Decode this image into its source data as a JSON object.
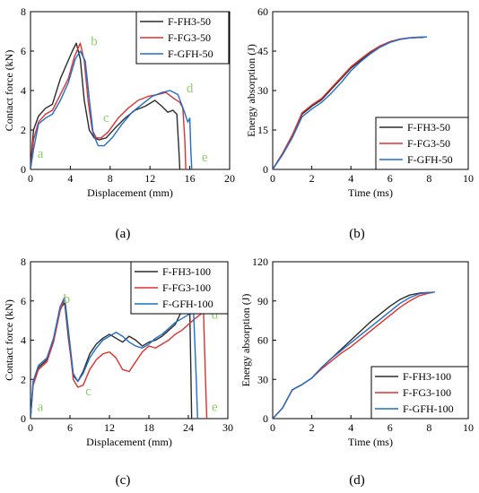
{
  "colors": {
    "FH3": "#2b2b2b",
    "FG3": "#e23030",
    "GFH": "#1f6fc9",
    "annotation": "#8fcf6a"
  },
  "chart_data": [
    {
      "id": "a",
      "type": "line",
      "caption": "(a)",
      "xlabel": "Displacement (mm)",
      "ylabel": "Contact force (kN)",
      "xlim": [
        0,
        20
      ],
      "ylim": [
        0,
        8
      ],
      "xticks": [
        0,
        4,
        8,
        12,
        16,
        20
      ],
      "yticks": [
        0,
        2,
        4,
        6,
        8
      ],
      "grid": false,
      "legend_position": "top-right",
      "annotations": [
        {
          "label": "a",
          "x": 1.0,
          "y": 0.6
        },
        {
          "label": "b",
          "x": 6.4,
          "y": 6.3
        },
        {
          "label": "c",
          "x": 7.6,
          "y": 2.4
        },
        {
          "label": "d",
          "x": 16.0,
          "y": 3.9
        },
        {
          "label": "e",
          "x": 17.5,
          "y": 0.4
        }
      ],
      "series": [
        {
          "name": "F-FH3-50",
          "color_key": "FH3",
          "x": [
            0,
            0.3,
            0.8,
            1.5,
            2.2,
            3.0,
            3.6,
            4.2,
            4.6,
            5.0,
            5.4,
            5.9,
            6.4,
            6.9,
            7.6,
            8.5,
            9.5,
            10.5,
            11.5,
            12.5,
            13.2,
            13.8,
            14.3,
            14.7,
            14.9,
            15.0
          ],
          "y": [
            0,
            2.0,
            2.7,
            3.1,
            3.3,
            4.6,
            5.3,
            6.0,
            6.4,
            5.6,
            3.5,
            2.0,
            1.6,
            1.5,
            1.6,
            2.1,
            2.6,
            3.0,
            3.2,
            3.5,
            3.2,
            2.9,
            3.0,
            2.8,
            1.0,
            0
          ]
        },
        {
          "name": "F-FG3-50",
          "color_key": "FG3",
          "x": [
            0,
            0.3,
            0.8,
            1.5,
            2.2,
            3.0,
            3.8,
            4.4,
            5.0,
            5.4,
            5.8,
            6.2,
            6.6,
            7.1,
            7.8,
            8.8,
            9.8,
            10.8,
            11.8,
            12.8,
            13.6,
            14.4,
            15.0,
            15.3,
            15.5,
            15.6
          ],
          "y": [
            0,
            1.5,
            2.4,
            2.8,
            3.0,
            3.8,
            4.6,
            5.7,
            6.4,
            5.5,
            3.4,
            2.0,
            1.6,
            1.6,
            1.9,
            2.6,
            3.1,
            3.5,
            3.7,
            3.8,
            3.9,
            3.6,
            3.4,
            3.1,
            1.5,
            0
          ]
        },
        {
          "name": "F-GFH-50",
          "color_key": "GFH",
          "x": [
            0,
            0.3,
            0.8,
            1.5,
            2.2,
            3.0,
            3.8,
            4.5,
            5.0,
            5.5,
            5.9,
            6.3,
            6.8,
            7.4,
            8.2,
            9.2,
            10.2,
            11.2,
            12.2,
            13.2,
            14.0,
            14.8,
            15.4,
            15.8,
            16.0,
            16.1,
            16.2
          ],
          "y": [
            0,
            1.0,
            2.3,
            2.6,
            2.8,
            3.5,
            4.4,
            5.6,
            6.0,
            5.5,
            3.6,
            1.8,
            1.2,
            1.2,
            1.6,
            2.3,
            2.9,
            3.3,
            3.7,
            3.9,
            4.0,
            3.8,
            3.0,
            2.4,
            2.6,
            1.0,
            0
          ]
        }
      ]
    },
    {
      "id": "b",
      "type": "line",
      "caption": "(b)",
      "xlabel": "Time (ms)",
      "ylabel": "Energy absorption (J)",
      "xlim": [
        0,
        10
      ],
      "ylim": [
        0,
        60
      ],
      "xticks": [
        0,
        2,
        4,
        6,
        8,
        10
      ],
      "yticks": [
        0,
        15,
        30,
        45,
        60
      ],
      "grid": false,
      "legend_position": "bottom-right",
      "series": [
        {
          "name": "F-FH3-50",
          "color_key": "FH3",
          "x": [
            0,
            0.5,
            1.0,
            1.5,
            2.0,
            2.5,
            3.0,
            3.5,
            4.0,
            4.5,
            5.0,
            5.5,
            6.0,
            6.5,
            7.0,
            7.5,
            7.7
          ],
          "y": [
            0,
            6,
            13,
            21,
            24,
            26.5,
            30.5,
            34.5,
            38.5,
            41.5,
            44.5,
            46.8,
            48.5,
            49.5,
            50.0,
            50.2,
            50.2
          ]
        },
        {
          "name": "F-FG3-50",
          "color_key": "FG3",
          "x": [
            0,
            0.5,
            1.0,
            1.5,
            2.0,
            2.5,
            3.0,
            3.5,
            4.0,
            4.5,
            5.0,
            5.5,
            6.0,
            6.5,
            7.0,
            7.5,
            7.8
          ],
          "y": [
            0,
            6,
            13,
            21.5,
            24.5,
            27,
            31,
            35,
            39,
            42,
            44.8,
            47,
            48.6,
            49.6,
            50.1,
            50.3,
            50.3
          ]
        },
        {
          "name": "F-GFH-50",
          "color_key": "GFH",
          "x": [
            0,
            0.5,
            1.0,
            1.5,
            2.0,
            2.5,
            3.0,
            3.5,
            4.0,
            4.5,
            5.0,
            5.5,
            6.0,
            6.5,
            7.0,
            7.5,
            7.9
          ],
          "y": [
            0,
            5.5,
            12,
            20,
            23,
            25.5,
            29,
            33,
            37.5,
            41,
            44,
            46.5,
            48.3,
            49.4,
            50.0,
            50.3,
            50.4
          ]
        }
      ]
    },
    {
      "id": "c",
      "type": "line",
      "caption": "(c)",
      "xlabel": "Displacement (mm)",
      "ylabel": "Contact force (kN)",
      "xlim": [
        0,
        30
      ],
      "ylim": [
        0,
        8
      ],
      "xticks": [
        0,
        6,
        12,
        18,
        24,
        30
      ],
      "yticks": [
        0,
        2,
        4,
        6,
        8
      ],
      "grid": false,
      "legend_position": "top-right",
      "annotations": [
        {
          "label": "a",
          "x": 1.5,
          "y": 0.4
        },
        {
          "label": "b",
          "x": 5.5,
          "y": 5.9
        },
        {
          "label": "c",
          "x": 8.8,
          "y": 1.2
        },
        {
          "label": "d",
          "x": 28.0,
          "y": 5.1
        },
        {
          "label": "e",
          "x": 28.0,
          "y": 0.4
        }
      ],
      "series": [
        {
          "name": "F-FH3-100",
          "color_key": "FH3",
          "x": [
            0,
            0.4,
            1.2,
            2.5,
            3.5,
            4.5,
            5.2,
            5.8,
            6.5,
            7.2,
            8.0,
            9.0,
            10.0,
            11.0,
            12.0,
            13.0,
            14.0,
            15.0,
            16.0,
            17.0,
            18.0,
            19.0,
            20.0,
            21.0,
            22.0,
            23.0,
            23.8,
            24.2,
            24.4,
            24.5
          ],
          "y": [
            0,
            1.8,
            2.6,
            3.0,
            4.0,
            5.6,
            5.9,
            4.0,
            2.2,
            1.9,
            2.4,
            3.3,
            3.8,
            4.1,
            4.3,
            4.1,
            3.9,
            4.2,
            4.0,
            3.7,
            3.9,
            4.0,
            4.2,
            4.5,
            4.8,
            5.5,
            5.9,
            5.8,
            2.0,
            0
          ]
        },
        {
          "name": "F-FG3-100",
          "color_key": "FG3",
          "x": [
            0,
            0.4,
            1.2,
            2.5,
            3.5,
            4.5,
            5.2,
            5.8,
            6.5,
            7.2,
            8.0,
            9.0,
            10.0,
            11.0,
            12.0,
            13.0,
            14.0,
            15.0,
            16.0,
            17.0,
            18.0,
            19.0,
            20.0,
            21.0,
            22.0,
            23.0,
            24.0,
            25.0,
            25.8,
            26.3,
            26.6,
            26.8
          ],
          "y": [
            0,
            1.7,
            2.5,
            2.9,
            3.9,
            5.5,
            6.1,
            4.2,
            2.0,
            1.6,
            1.7,
            2.5,
            3.0,
            3.3,
            3.4,
            3.1,
            2.5,
            2.4,
            2.9,
            3.4,
            3.7,
            3.6,
            3.8,
            4.0,
            4.3,
            4.5,
            4.8,
            5.1,
            5.3,
            5.5,
            2.0,
            0
          ]
        },
        {
          "name": "F-GFH-100",
          "color_key": "GFH",
          "x": [
            0,
            0.4,
            1.2,
            2.5,
            3.5,
            4.5,
            5.2,
            5.8,
            6.5,
            7.2,
            8.0,
            9.0,
            10.0,
            11.0,
            12.0,
            13.0,
            14.0,
            15.0,
            16.0,
            17.0,
            18.0,
            19.0,
            20.0,
            21.0,
            22.0,
            23.0,
            24.0,
            24.8,
            25.2,
            25.4
          ],
          "y": [
            0,
            1.9,
            2.7,
            3.1,
            4.1,
            5.7,
            6.2,
            4.4,
            2.3,
            1.9,
            2.3,
            3.1,
            3.6,
            4.0,
            4.2,
            4.4,
            4.2,
            3.9,
            3.7,
            3.6,
            3.8,
            4.1,
            4.3,
            4.6,
            4.9,
            5.1,
            5.3,
            5.4,
            2.0,
            0
          ]
        }
      ]
    },
    {
      "id": "d",
      "type": "line",
      "caption": "(d)",
      "xlabel": "Time (ms)",
      "ylabel": "Energy absorption (J)",
      "xlim": [
        0,
        10
      ],
      "ylim": [
        0,
        120
      ],
      "xticks": [
        0,
        2,
        4,
        6,
        8,
        10
      ],
      "yticks": [
        0,
        30,
        60,
        90,
        120
      ],
      "grid": false,
      "legend_position": "bottom-right",
      "series": [
        {
          "name": "F-FH3-100",
          "color_key": "FH3",
          "x": [
            0,
            0.5,
            1.0,
            1.5,
            2.0,
            2.5,
            3.0,
            3.5,
            4.0,
            4.5,
            5.0,
            5.5,
            6.0,
            6.5,
            7.0,
            7.5,
            8.0
          ],
          "y": [
            0,
            8,
            22,
            26,
            31,
            39,
            46,
            53,
            60,
            67,
            74,
            80,
            86,
            91,
            94.5,
            96,
            96.5
          ]
        },
        {
          "name": "F-FG3-100",
          "color_key": "FG3",
          "x": [
            0,
            0.5,
            1.0,
            1.5,
            2.0,
            2.5,
            3.0,
            3.5,
            4.0,
            4.5,
            5.0,
            5.5,
            6.0,
            6.5,
            7.0,
            7.5,
            8.0,
            8.2
          ],
          "y": [
            0,
            8,
            22,
            26,
            31,
            38,
            44,
            50,
            55,
            61,
            67,
            73,
            79,
            85,
            90,
            94,
            96,
            96.5
          ]
        },
        {
          "name": "F-GFH-100",
          "color_key": "GFH",
          "x": [
            0,
            0.5,
            1.0,
            1.5,
            2.0,
            2.5,
            3.0,
            3.5,
            4.0,
            4.5,
            5.0,
            5.5,
            6.0,
            6.5,
            7.0,
            7.5,
            8.0,
            8.3
          ],
          "y": [
            0,
            8,
            22,
            26,
            31,
            39,
            46,
            52,
            58,
            64,
            70,
            76,
            82,
            88,
            92.5,
            95.5,
            96.5,
            96.8
          ]
        }
      ]
    }
  ]
}
